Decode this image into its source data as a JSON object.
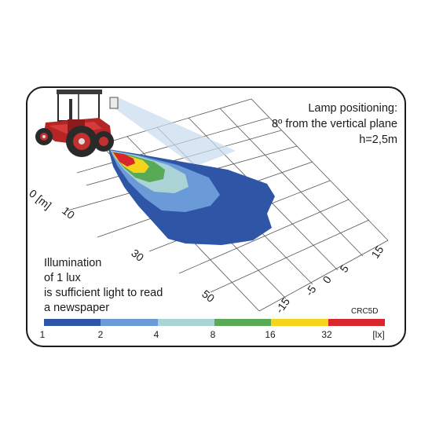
{
  "lamp": {
    "line1": "Lamp positioning:",
    "line2": "8º from the vertical plane",
    "line3": "h=2,5m"
  },
  "note": {
    "line1": "Illumination",
    "line2": "of 1 lux",
    "line3": "is sufficient light to read",
    "line4": "a newspaper"
  },
  "code": "CRC5D",
  "axis_distance": {
    "unit_label": "0 [m]",
    "ticks": [
      "10",
      "30",
      "50"
    ]
  },
  "axis_lateral": {
    "ticks": [
      "15",
      "5",
      "0",
      "-5",
      "-15"
    ]
  },
  "scale": {
    "colors": [
      "#2f55a6",
      "#6b9ad8",
      "#a9d3d4",
      "#58aa57",
      "#f4d51c",
      "#d8262c"
    ],
    "labels": [
      "1",
      "2",
      "4",
      "8",
      "16",
      "32",
      "[lx]"
    ]
  },
  "image": {
    "name": "tractor-illustration"
  }
}
